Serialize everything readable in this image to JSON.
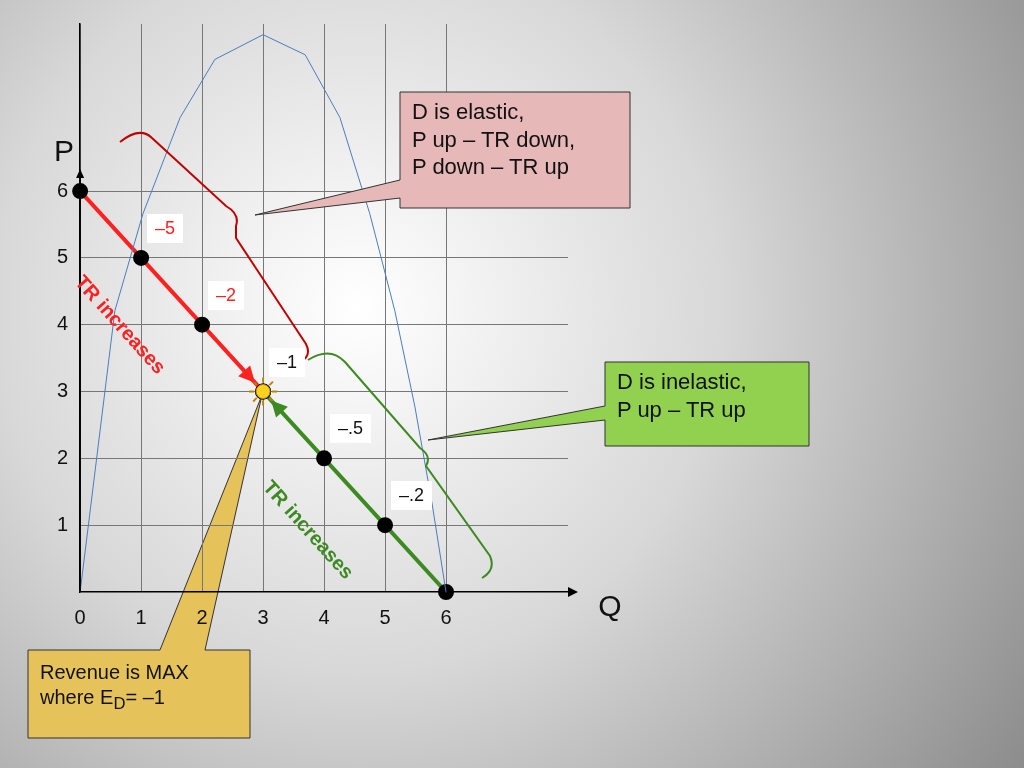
{
  "chart_data": {
    "type": "line",
    "xlabel": "Q",
    "ylabel": "P",
    "xlim": [
      0,
      8
    ],
    "ylim": [
      0,
      8.5
    ],
    "xticks": [
      0,
      1,
      2,
      3,
      4,
      5,
      6
    ],
    "yticks": [
      1,
      2,
      3,
      4,
      5,
      6
    ],
    "grid": true,
    "legend": false,
    "marker": "circle",
    "series": [
      {
        "color": "#4a7ebb",
        "marker": "none",
        "x": [
          0,
          0.57,
          1.03,
          1.64,
          2.21,
          3,
          3.69,
          4.26,
          4.75,
          5.16,
          5.49,
          5.77,
          6
        ],
        "values": [
          0,
          4.21,
          5.66,
          7.1,
          7.97,
          8.34,
          8.04,
          7.1,
          5.66,
          4.21,
          2.77,
          1.33,
          0
        ]
      },
      {
        "color": "#ff2020",
        "x": [
          0,
          1,
          2,
          3
        ],
        "values": [
          6,
          5,
          4,
          3
        ]
      },
      {
        "color": "#3d8a22",
        "x": [
          3,
          4,
          5,
          6
        ],
        "values": [
          3,
          2,
          1,
          0
        ]
      }
    ],
    "annotations": [
      {
        "text": "–5",
        "x": 1,
        "y": 5
      },
      {
        "text": "–2",
        "x": 2,
        "y": 4
      },
      {
        "text": "–1",
        "x": 3,
        "y": 3
      },
      {
        "text": "–.5",
        "x": 4,
        "y": 2
      },
      {
        "text": "–.2",
        "x": 5,
        "y": 1
      },
      "TR increases",
      "TR increases",
      "D is elastic,\nP up – TR down,\nP down – TR up",
      "D is inelastic,\nP up – TR up",
      "Revenue is MAX where E$_{D}$= –1"
    ]
  }
}
